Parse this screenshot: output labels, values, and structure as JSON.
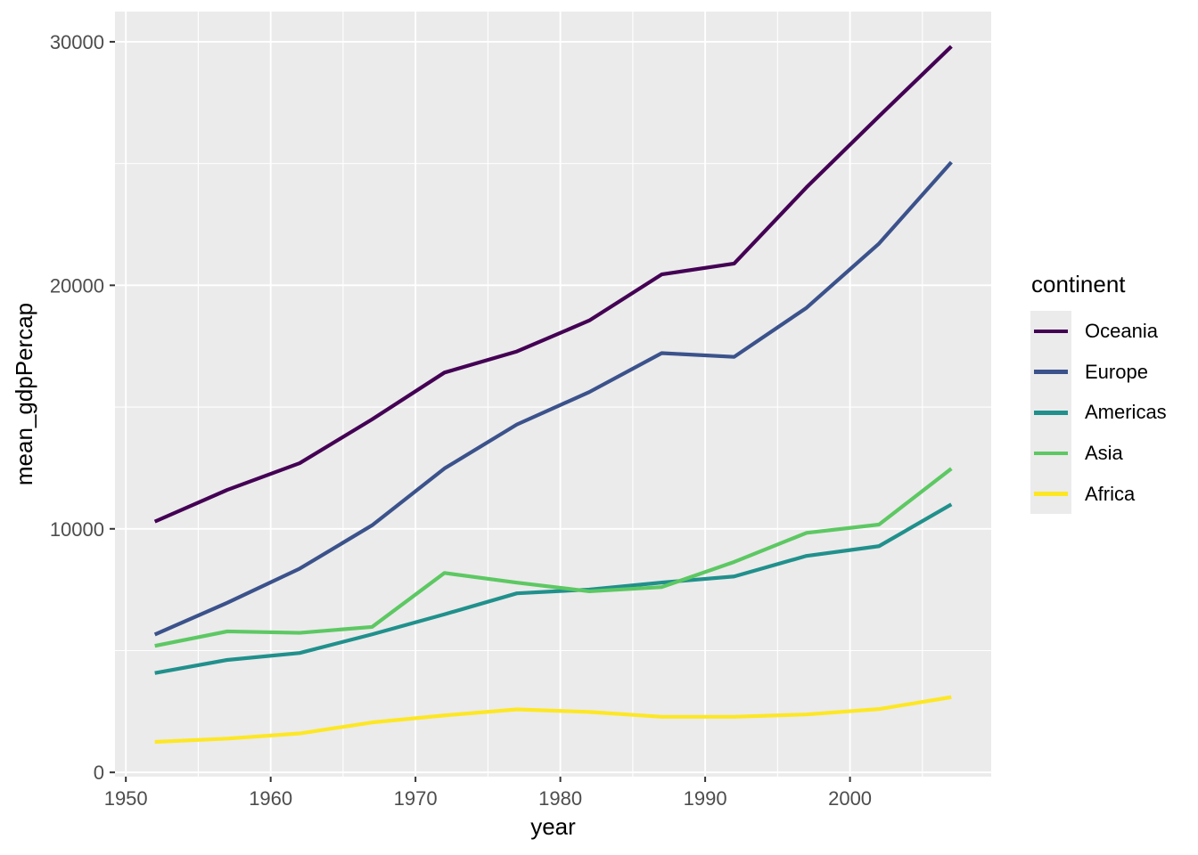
{
  "chart_data": {
    "type": "line",
    "title": "",
    "xlabel": "year",
    "ylabel": "mean_gdpPercap",
    "legend_title": "continent",
    "legend_position": "right",
    "grid": true,
    "x": [
      1952,
      1957,
      1962,
      1967,
      1972,
      1977,
      1982,
      1987,
      1992,
      1997,
      2002,
      2007
    ],
    "series": [
      {
        "name": "Oceania",
        "color": "#440154",
        "values": [
          10298.09,
          11598.52,
          12696.45,
          14495.02,
          16417.33,
          17283.96,
          18554.71,
          20448.04,
          20894.05,
          24024.18,
          26938.78,
          29810.19
        ]
      },
      {
        "name": "Europe",
        "color": "#3B528B",
        "values": [
          5661.06,
          6963.01,
          8365.49,
          10143.82,
          12479.57,
          14283.98,
          15617.9,
          17214.31,
          17061.57,
          19076.78,
          21711.73,
          25054.48
        ]
      },
      {
        "name": "Americas",
        "color": "#21908C",
        "values": [
          4079.06,
          4616.04,
          4901.54,
          5668.25,
          6491.33,
          7352.01,
          7506.74,
          7793.4,
          8044.93,
          8889.3,
          9287.68,
          11003.03
        ]
      },
      {
        "name": "Asia",
        "color": "#5DC863",
        "values": [
          5195.48,
          5787.73,
          5729.37,
          5971.17,
          8187.47,
          7791.31,
          7434.14,
          7608.23,
          8639.69,
          9834.09,
          10174.09,
          12473.03
        ]
      },
      {
        "name": "Africa",
        "color": "#FDE725",
        "values": [
          1252.57,
          1385.24,
          1598.08,
          2050.36,
          2339.62,
          2585.94,
          2481.59,
          2282.67,
          2281.81,
          2378.76,
          2599.38,
          3089.03
        ]
      }
    ],
    "draw_order": [
      "Africa",
      "Americas",
      "Asia",
      "Europe",
      "Oceania"
    ],
    "x_ticks": [
      1950,
      1960,
      1970,
      1980,
      1990,
      2000
    ],
    "x_minor_ticks": [
      1955,
      1965,
      1975,
      1985,
      1995,
      2005
    ],
    "y_ticks": [
      0,
      10000,
      20000,
      30000
    ],
    "y_minor_ticks": [
      5000,
      15000,
      25000
    ],
    "xlim": [
      1949.25,
      2009.75
    ],
    "ylim": [
      -175,
      31240
    ],
    "colors": {
      "panel_background": "#EBEBEB",
      "grid": "#FFFFFF",
      "tick_mark": "#333333",
      "tick_label": "#4D4D4D",
      "axis_title": "#000000",
      "legend_text": "#000000"
    }
  }
}
